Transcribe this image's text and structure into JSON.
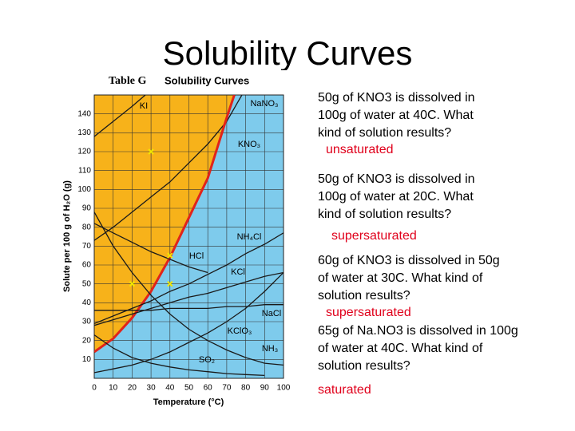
{
  "slide_title": "Solubility Curves",
  "questions": [
    {
      "text": [
        "50g of KNO3 is dissolved in",
        "100g of water at 40C.  What",
        "kind of solution results?"
      ],
      "answer": "unsaturated"
    },
    {
      "text": [
        "50g of KNO3 is dissolved in",
        "100g of water at 20C.  What",
        "kind of solution results?"
      ],
      "answer": "supersaturated"
    },
    {
      "text": [
        "60g of KNO3 is dissolved in 50g",
        "of water at 30C.  What kind of",
        "solution results?"
      ],
      "answer": "supersaturated"
    },
    {
      "text": [
        "65g of Na.NO3 is dissolved in 100g",
        "of water at 40C.  What kind of",
        "solution results?"
      ],
      "answer": "saturated"
    }
  ],
  "chart_data": {
    "type": "line",
    "title": "Table G",
    "subtitle": "Solubility Curves",
    "xlabel": "Temperature (°C)",
    "ylabel": "Solute per 100 g of H₂O (g)",
    "xlim": [
      0,
      100
    ],
    "ylim": [
      0,
      150
    ],
    "xticks": [
      0,
      10,
      20,
      30,
      40,
      50,
      60,
      70,
      80,
      90,
      100
    ],
    "yticks": [
      10,
      20,
      30,
      40,
      50,
      60,
      70,
      80,
      90,
      100,
      110,
      120,
      130,
      140
    ],
    "grid": true,
    "supersaturated_color": "#f7b21a",
    "background_color": "#7ecbec",
    "series": [
      {
        "name": "KI",
        "color": "#1a1a1a",
        "x": [
          0,
          10,
          20,
          27
        ],
        "values": [
          128,
          136,
          144,
          150
        ]
      },
      {
        "name": "NaNO₃",
        "color": "#1a1a1a",
        "x": [
          0,
          10,
          20,
          30,
          40,
          50,
          60,
          70,
          78
        ],
        "values": [
          73,
          80,
          88,
          96,
          104,
          114,
          124,
          136,
          150
        ]
      },
      {
        "name": "KNO₃",
        "color": "#e0241b",
        "x": [
          0,
          10,
          20,
          30,
          40,
          50,
          60,
          70,
          74
        ],
        "values": [
          14,
          21,
          32,
          46,
          64,
          85,
          106,
          138,
          150
        ]
      },
      {
        "name": "NH₄Cl",
        "color": "#1a1a1a",
        "x": [
          0,
          10,
          20,
          30,
          40,
          50,
          60,
          70,
          80,
          90,
          100
        ],
        "values": [
          29,
          33,
          37,
          41,
          46,
          50,
          55,
          60,
          66,
          71,
          77
        ]
      },
      {
        "name": "HCl",
        "color": "#1a1a1a",
        "x": [
          0,
          10,
          20,
          30,
          40,
          50,
          60
        ],
        "values": [
          82,
          77,
          72,
          67,
          63,
          59,
          56
        ]
      },
      {
        "name": "KCl",
        "color": "#1a1a1a",
        "x": [
          0,
          10,
          20,
          30,
          40,
          50,
          60,
          70,
          80,
          90,
          100
        ],
        "values": [
          28,
          31,
          34,
          37,
          40,
          43,
          45,
          48,
          51,
          54,
          56
        ]
      },
      {
        "name": "NaCl",
        "color": "#1a1a1a",
        "x": [
          0,
          10,
          20,
          30,
          40,
          50,
          60,
          70,
          80,
          90,
          100
        ],
        "values": [
          36,
          36,
          36,
          36,
          37,
          37,
          37,
          38,
          38,
          39,
          39
        ]
      },
      {
        "name": "KClO₃",
        "color": "#1a1a1a",
        "x": [
          0,
          10,
          20,
          30,
          40,
          50,
          60,
          70,
          80,
          90,
          100
        ],
        "values": [
          3,
          5,
          7,
          10,
          14,
          19,
          24,
          30,
          37,
          46,
          56
        ]
      },
      {
        "name": "NH₃",
        "color": "#1a1a1a",
        "x": [
          0,
          10,
          20,
          30,
          40,
          50,
          60,
          70,
          80,
          90,
          100
        ],
        "values": [
          88,
          70,
          56,
          44,
          34,
          26,
          20,
          15,
          11,
          8,
          7
        ]
      },
      {
        "name": "SO₂",
        "color": "#1a1a1a",
        "x": [
          0,
          10,
          20,
          30,
          40,
          50,
          60,
          70,
          80,
          90
        ],
        "values": [
          23,
          16,
          11,
          8,
          6,
          4.5,
          3.5,
          2.5,
          2,
          1.5
        ]
      }
    ],
    "markers": {
      "color": "#f3e600",
      "x": [
        40,
        20,
        30,
        40
      ],
      "values": [
        50,
        50,
        120,
        65
      ]
    }
  }
}
